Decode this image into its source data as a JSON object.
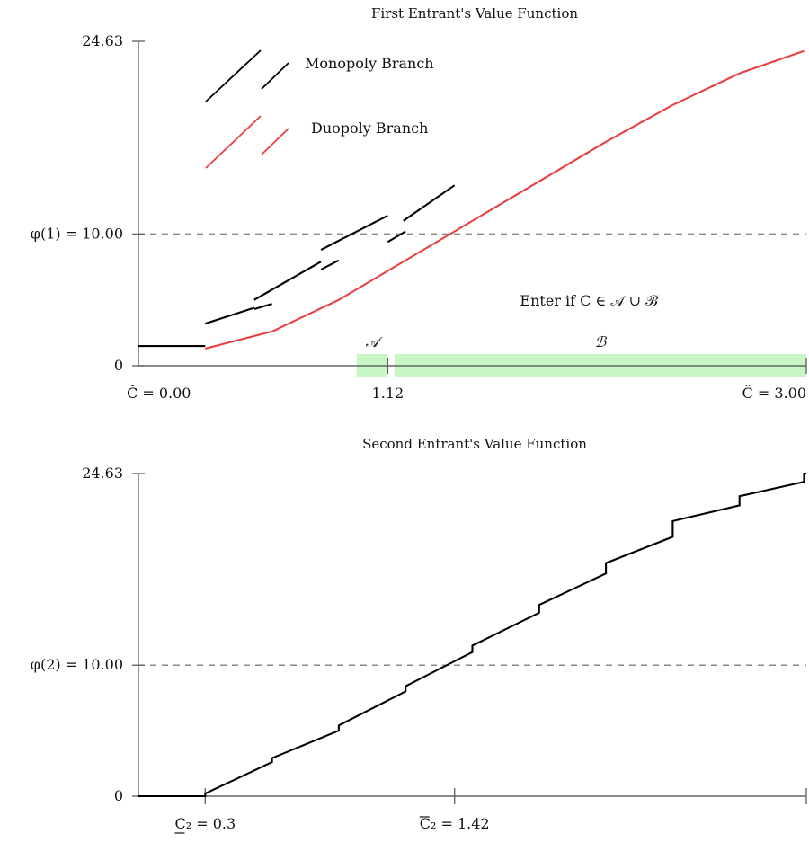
{
  "chart_data": [
    {
      "type": "line",
      "title": "First Entrant's Value Function",
      "xlim": [
        0,
        3.0
      ],
      "ylim": [
        0,
        24.63
      ],
      "y_ticks": [
        {
          "value": 0,
          "label": "0"
        },
        {
          "value": 24.63,
          "label": "24.63"
        }
      ],
      "x_ticks": [
        {
          "value": 0.0,
          "label": "Ĉ = 0.00",
          "tick_mark": false
        },
        {
          "value": 1.12,
          "label": "1.12",
          "tick_mark": true
        },
        {
          "value": 3.0,
          "label": "Č = 3.00",
          "tick_mark": true
        }
      ],
      "reference_line": {
        "value": 10.0,
        "label": "φ(1) = 10.00"
      },
      "regions": [
        {
          "label": "𝒜",
          "from": 0.98,
          "to": 1.12,
          "color": "#c8f7c5"
        },
        {
          "label": "ℬ",
          "from": 1.15,
          "to": 3.0,
          "color": "#c8f7c5"
        }
      ],
      "region_caption": "Enter if C ∈ 𝒜 ∪ ℬ",
      "legend": [
        {
          "name": "Monopoly Branch",
          "color": "#000000"
        },
        {
          "name": "Duopoly Branch",
          "color": "#e84040"
        }
      ],
      "series": [
        {
          "name": "Monopoly Branch",
          "color": "#000000",
          "segments": [
            [
              [
                0.0,
                1.5
              ],
              [
                0.3,
                1.5
              ]
            ],
            [
              [
                0.3,
                3.2
              ],
              [
                0.52,
                4.4
              ]
            ],
            [
              [
                0.52,
                5.0
              ],
              [
                0.82,
                7.9
              ]
            ],
            [
              [
                0.82,
                8.8
              ],
              [
                1.12,
                11.4
              ]
            ],
            [
              [
                1.19,
                11.0
              ],
              [
                1.42,
                13.7
              ]
            ]
          ],
          "dashes": [
            [
              [
                0.52,
                4.3
              ],
              [
                0.6,
                4.7
              ]
            ],
            [
              [
                0.82,
                7.3
              ],
              [
                0.9,
                8.0
              ]
            ],
            [
              [
                1.12,
                9.4
              ],
              [
                1.2,
                10.2
              ]
            ]
          ]
        },
        {
          "name": "Duopoly Branch",
          "color": "#e84040",
          "segments": [
            [
              [
                0.3,
                1.3
              ],
              [
                0.6,
                2.6
              ]
            ],
            [
              [
                0.6,
                2.6
              ],
              [
                0.9,
                5.0
              ]
            ],
            [
              [
                0.9,
                5.0
              ],
              [
                1.2,
                8.0
              ]
            ],
            [
              [
                1.2,
                8.0
              ],
              [
                1.5,
                11.0
              ]
            ],
            [
              [
                1.5,
                11.0
              ],
              [
                1.8,
                14.0
              ]
            ],
            [
              [
                1.8,
                14.0
              ],
              [
                2.1,
                17.0
              ]
            ],
            [
              [
                2.1,
                17.0
              ],
              [
                2.4,
                19.8
              ]
            ],
            [
              [
                2.4,
                19.8
              ],
              [
                2.7,
                22.2
              ]
            ],
            [
              [
                2.7,
                22.2
              ],
              [
                2.99,
                23.9
              ]
            ]
          ]
        }
      ]
    },
    {
      "type": "line",
      "title": "Second Entrant's Value Function",
      "xlim": [
        0,
        3.0
      ],
      "ylim": [
        0,
        24.63
      ],
      "y_ticks": [
        {
          "value": 0,
          "label": "0"
        },
        {
          "value": 24.63,
          "label": "24.63"
        }
      ],
      "x_ticks": [
        {
          "value": 0.3,
          "label": "C₂ = 0.3",
          "underline_c": true,
          "tick_mark": true
        },
        {
          "value": 1.42,
          "label": "C₂ = 1.42",
          "overline_c": true,
          "tick_mark": true
        },
        {
          "value": 3.0,
          "label": "",
          "tick_mark": true
        }
      ],
      "reference_line": {
        "value": 10.0,
        "label": "φ(2) = 10.00"
      },
      "series": [
        {
          "name": "",
          "color": "#000000",
          "points": [
            [
              0.0,
              0.0
            ],
            [
              0.3,
              0.0
            ],
            [
              0.3,
              0.2
            ],
            [
              0.6,
              2.6
            ],
            [
              0.6,
              2.9
            ],
            [
              0.9,
              5.0
            ],
            [
              0.9,
              5.4
            ],
            [
              1.2,
              8.0
            ],
            [
              1.2,
              8.4
            ],
            [
              1.5,
              11.0
            ],
            [
              1.5,
              11.5
            ],
            [
              1.8,
              14.0
            ],
            [
              1.8,
              14.6
            ],
            [
              2.1,
              17.0
            ],
            [
              2.1,
              17.8
            ],
            [
              2.4,
              19.8
            ],
            [
              2.4,
              21.0
            ],
            [
              2.7,
              22.2
            ],
            [
              2.7,
              22.9
            ],
            [
              2.99,
              24.0
            ],
            [
              2.99,
              24.63
            ],
            [
              3.0,
              24.63
            ]
          ]
        }
      ]
    }
  ]
}
